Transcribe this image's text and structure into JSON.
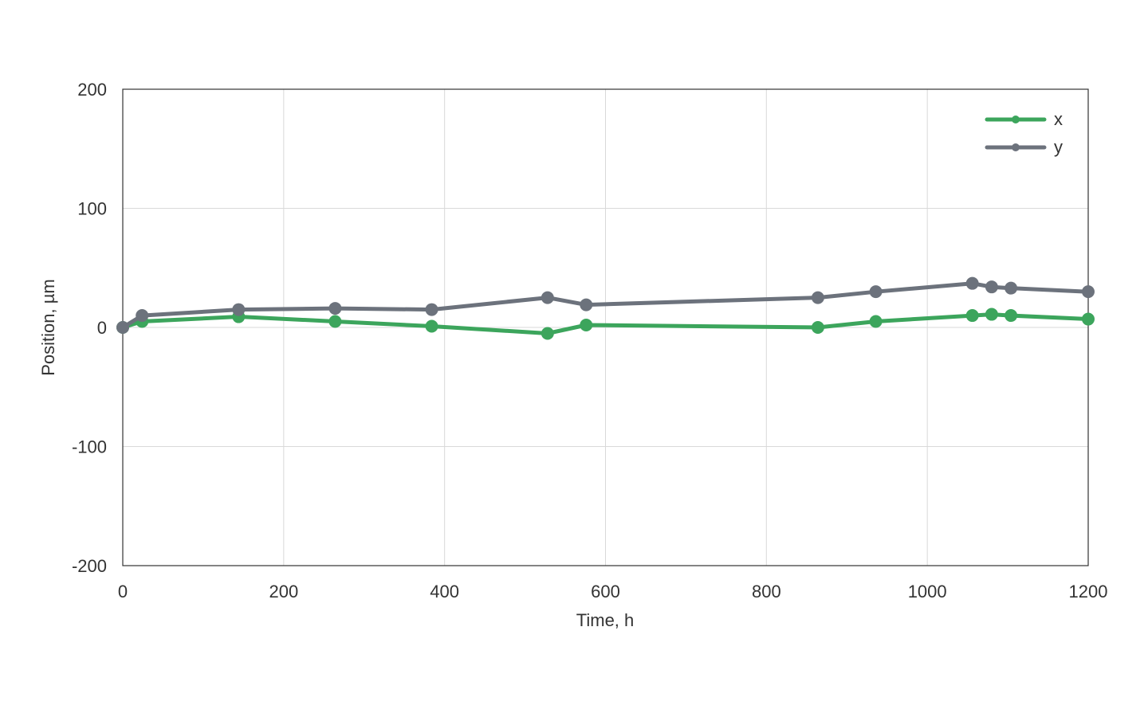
{
  "chart_data": {
    "type": "line",
    "title": "",
    "xlabel": "Time, h",
    "ylabel": "Position, µm",
    "xlim": [
      0,
      1200
    ],
    "ylim": [
      -200,
      200
    ],
    "xticks": [
      "0",
      "200",
      "400",
      "600",
      "800",
      "1000",
      "1200"
    ],
    "yticks": [
      "200",
      "100",
      "0",
      "-100",
      "-200"
    ],
    "grid": true,
    "legend_position": "top-right",
    "series": [
      {
        "name": "x",
        "color": "#3ca55c",
        "x": [
          0,
          24,
          144,
          264,
          384,
          528,
          576,
          864,
          936,
          1056,
          1080,
          1104,
          1200
        ],
        "y": [
          0,
          5,
          9,
          5,
          1,
          -5,
          2,
          0,
          5,
          10,
          11,
          10,
          7
        ]
      },
      {
        "name": "y",
        "color": "#6c727c",
        "x": [
          0,
          24,
          144,
          264,
          384,
          528,
          576,
          864,
          936,
          1056,
          1080,
          1104,
          1200
        ],
        "y": [
          0,
          10,
          15,
          16,
          15,
          25,
          19,
          25,
          30,
          37,
          34,
          33,
          30
        ]
      }
    ]
  }
}
